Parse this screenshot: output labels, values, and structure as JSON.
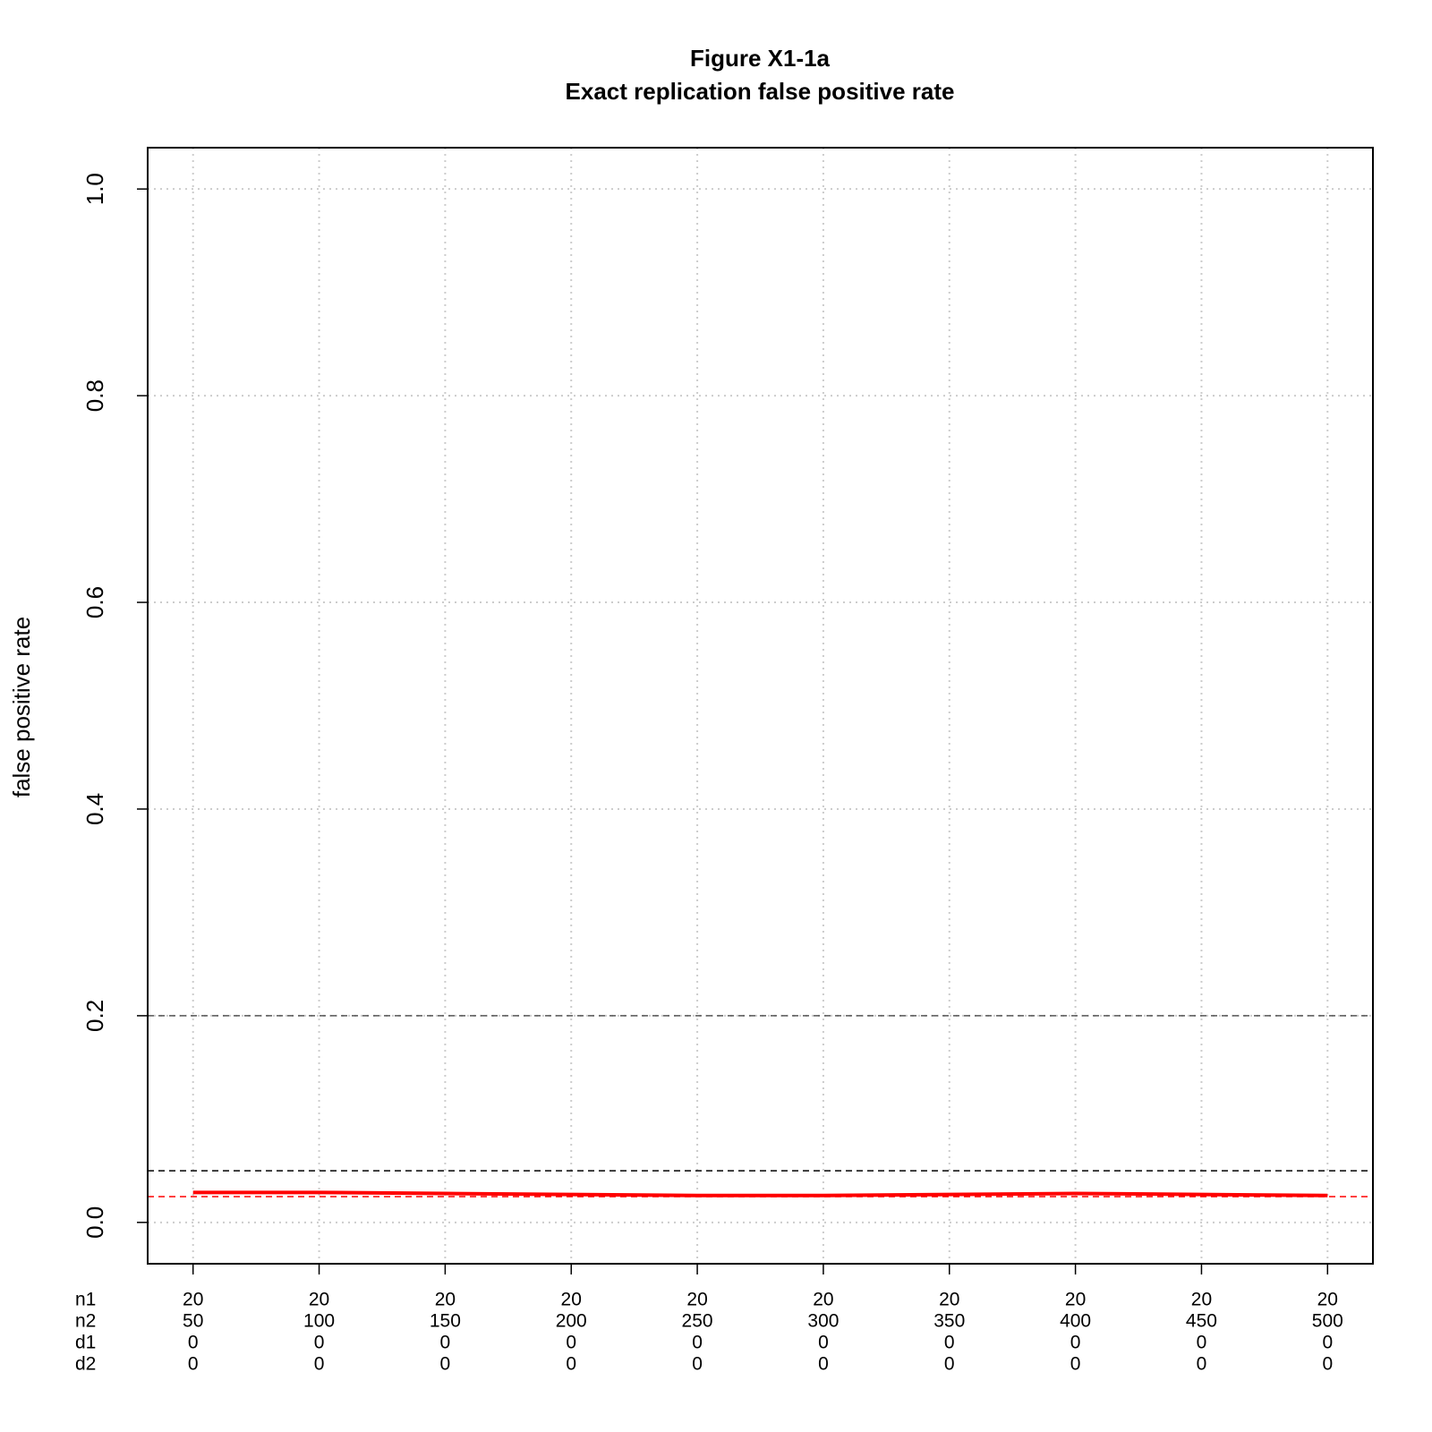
{
  "chart_data": {
    "type": "line",
    "title": "Figure X1-1a",
    "subtitle": "Exact replication false positive rate",
    "y_label": "false positive rate",
    "categories": [
      null,
      null,
      null,
      null,
      null,
      null,
      null,
      null,
      null,
      null
    ],
    "x_rows": [
      {
        "label": "n1",
        "values": [
          20,
          20,
          20,
          20,
          20,
          20,
          20,
          20,
          20,
          20
        ]
      },
      {
        "label": "n2",
        "values": [
          50,
          100,
          150,
          200,
          250,
          300,
          350,
          400,
          450,
          500
        ]
      },
      {
        "label": "d1",
        "values": [
          0,
          0,
          0,
          0,
          0,
          0,
          0,
          0,
          0,
          0
        ]
      },
      {
        "label": "d2",
        "values": [
          0,
          0,
          0,
          0,
          0,
          0,
          0,
          0,
          0,
          0
        ]
      }
    ],
    "series": [
      {
        "color": "#ff0000",
        "values": [
          0.029,
          0.029,
          0.028,
          0.027,
          0.026,
          0.026,
          0.027,
          0.028,
          0.027,
          0.026
        ]
      }
    ],
    "reference_lines": [
      {
        "value": 0.2,
        "color": "#555555"
      },
      {
        "value": 0.05,
        "color": "#000000"
      },
      {
        "value": 0.025,
        "color": "#ff0000"
      }
    ],
    "ylim": [
      -0.04,
      1.04
    ],
    "yticks": [
      {
        "value": 0,
        "label": "0.0"
      },
      {
        "value": 0.2,
        "label": "0.2"
      },
      {
        "value": 0.4,
        "label": "0.4"
      },
      {
        "value": 0.6,
        "label": "0.6"
      },
      {
        "value": 0.8,
        "label": "0.8"
      },
      {
        "value": 1,
        "label": "1.0"
      }
    ],
    "grid": true
  }
}
